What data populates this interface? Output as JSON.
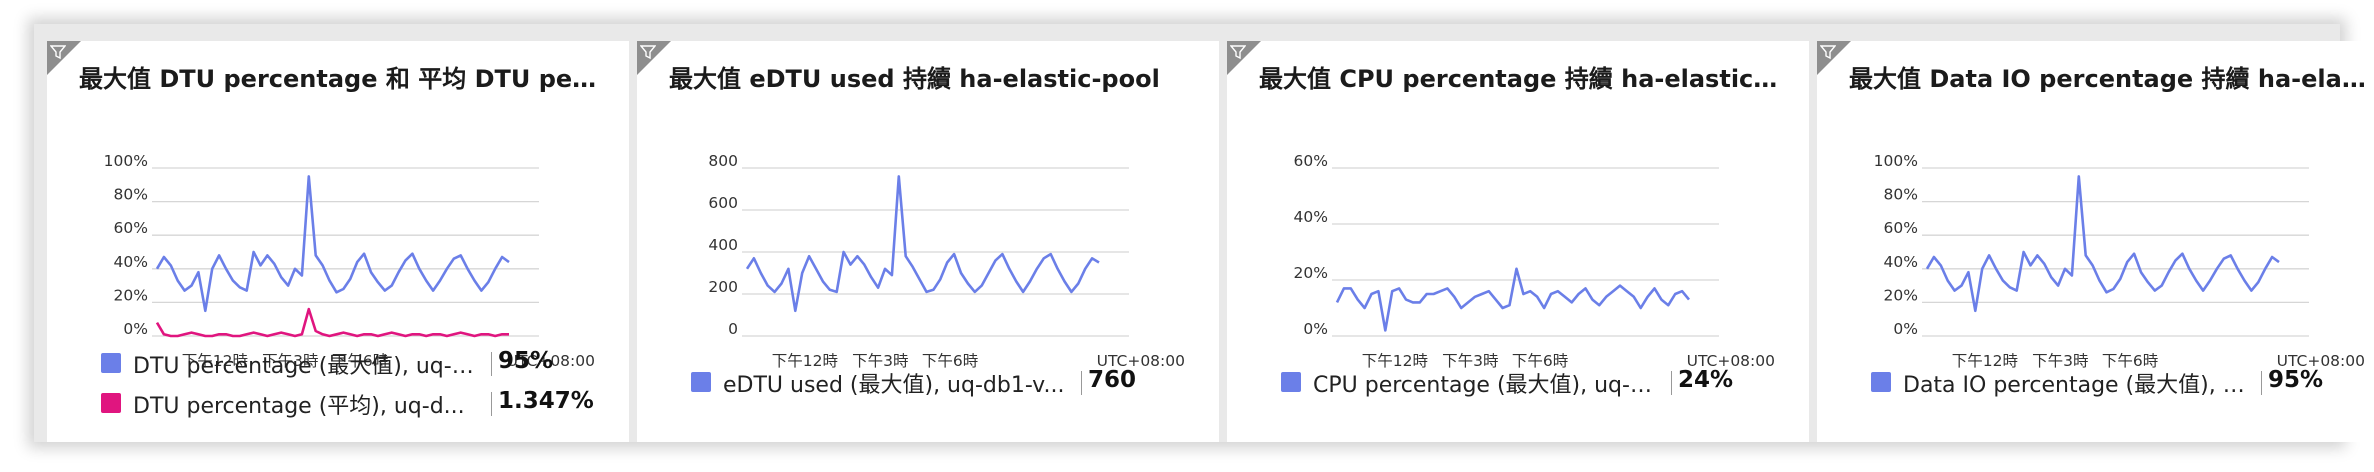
{
  "colors": {
    "series_blue": "#6b7fe8",
    "series_pink": "#e0157f",
    "grid": "#d6d6d6"
  },
  "tiles": [
    {
      "title": "最大值 DTU percentage 和 平均 DTU percen...",
      "filter_icon": "filter-icon",
      "legend": [
        {
          "label": "DTU percentage (最大值), uq-d...",
          "value": "95%",
          "color": "#6b7fe8"
        },
        {
          "label": "DTU percentage (平均), uq-d...",
          "value": "1.347%",
          "color": "#e0157f"
        }
      ]
    },
    {
      "title": "最大值 eDTU used 持續 ha-elastic-pool",
      "filter_icon": "filter-icon",
      "legend": [
        {
          "label": "eDTU used (最大值), uq-db1-v...",
          "value": "760",
          "color": "#6b7fe8"
        }
      ]
    },
    {
      "title": "最大值 CPU percentage 持續 ha-elastic-pool",
      "filter_icon": "filter-icon",
      "legend": [
        {
          "label": "CPU percentage (最大值), uq-d...",
          "value": "24%",
          "color": "#6b7fe8"
        }
      ]
    },
    {
      "title": "最大值 Data IO percentage 持續 ha-elastic-...",
      "filter_icon": "filter-icon",
      "legend": [
        {
          "label": "Data IO percentage (最大值), u...",
          "value": "95%",
          "color": "#6b7fe8"
        }
      ]
    }
  ],
  "chart_data": [
    {
      "type": "line",
      "yticks": [
        "100%",
        "80%",
        "60%",
        "40%",
        "20%",
        "0%"
      ],
      "ylim": [
        0,
        100
      ],
      "xticks": [
        "下午12時",
        "下午3時",
        "下午6時"
      ],
      "timezone": "UTC+08:00",
      "series": [
        {
          "name": "DTU percentage (最大值), uq-d...",
          "color": "#6b7fe8",
          "values": [
            40,
            47,
            42,
            33,
            27,
            30,
            38,
            15,
            40,
            48,
            40,
            33,
            29,
            27,
            50,
            42,
            48,
            43,
            35,
            30,
            40,
            36,
            95,
            48,
            42,
            33,
            26,
            28,
            34,
            44,
            49,
            38,
            32,
            27,
            30,
            38,
            45,
            49,
            40,
            33,
            27,
            33,
            40,
            46,
            48,
            40,
            33,
            27,
            32,
            40,
            47,
            44
          ]
        },
        {
          "name": "DTU percentage (平均), uq-d...",
          "color": "#e0157f",
          "values": [
            8,
            1,
            0,
            0,
            1,
            2,
            1,
            0,
            0,
            1,
            1,
            0,
            0,
            1,
            2,
            1,
            0,
            1,
            2,
            1,
            0,
            1,
            16,
            3,
            1,
            0,
            1,
            2,
            1,
            0,
            1,
            1,
            0,
            1,
            2,
            1,
            0,
            1,
            1,
            0,
            1,
            1,
            0,
            1,
            2,
            1,
            0,
            1,
            1,
            0,
            1,
            1
          ]
        }
      ]
    },
    {
      "type": "line",
      "yticks": [
        "800",
        "600",
        "400",
        "200",
        "0"
      ],
      "ylim": [
        0,
        800
      ],
      "xticks": [
        "下午12時",
        "下午3時",
        "下午6時"
      ],
      "timezone": "UTC+08:00",
      "series": [
        {
          "name": "eDTU used (最大值), uq-db1-v...",
          "color": "#6b7fe8",
          "values": [
            320,
            370,
            300,
            240,
            210,
            250,
            320,
            120,
            300,
            380,
            320,
            260,
            220,
            210,
            400,
            340,
            380,
            340,
            280,
            230,
            320,
            290,
            760,
            380,
            330,
            270,
            210,
            220,
            270,
            350,
            390,
            300,
            250,
            210,
            240,
            300,
            360,
            390,
            320,
            260,
            210,
            260,
            320,
            370,
            390,
            320,
            260,
            210,
            250,
            320,
            370,
            350
          ]
        }
      ]
    },
    {
      "type": "line",
      "yticks": [
        "60%",
        "40%",
        "20%",
        "0%"
      ],
      "ylim": [
        0,
        60
      ],
      "xticks": [
        "下午12時",
        "下午3時",
        "下午6時"
      ],
      "timezone": "UTC+08:00",
      "series": [
        {
          "name": "CPU percentage (最大值), uq-d...",
          "color": "#6b7fe8",
          "values": [
            12,
            17,
            17,
            13,
            10,
            15,
            16,
            2,
            16,
            17,
            13,
            12,
            12,
            15,
            15,
            16,
            17,
            14,
            10,
            12,
            14,
            15,
            16,
            13,
            10,
            11,
            24,
            15,
            16,
            14,
            10,
            15,
            16,
            14,
            12,
            15,
            17,
            13,
            11,
            14,
            16,
            18,
            16,
            14,
            10,
            14,
            17,
            13,
            11,
            15,
            16,
            13
          ]
        }
      ]
    },
    {
      "type": "line",
      "yticks": [
        "100%",
        "80%",
        "60%",
        "40%",
        "20%",
        "0%"
      ],
      "ylim": [
        0,
        100
      ],
      "xticks": [
        "下午12時",
        "下午3時",
        "下午6時"
      ],
      "timezone": "UTC+08:00",
      "series": [
        {
          "name": "Data IO percentage (最大值), u...",
          "color": "#6b7fe8",
          "values": [
            40,
            47,
            42,
            33,
            27,
            30,
            38,
            15,
            40,
            48,
            40,
            33,
            29,
            27,
            50,
            42,
            48,
            43,
            35,
            30,
            40,
            36,
            95,
            48,
            42,
            33,
            26,
            28,
            34,
            44,
            49,
            38,
            32,
            27,
            30,
            38,
            45,
            49,
            40,
            33,
            27,
            33,
            40,
            46,
            48,
            40,
            33,
            27,
            32,
            40,
            47,
            44
          ]
        }
      ]
    }
  ]
}
